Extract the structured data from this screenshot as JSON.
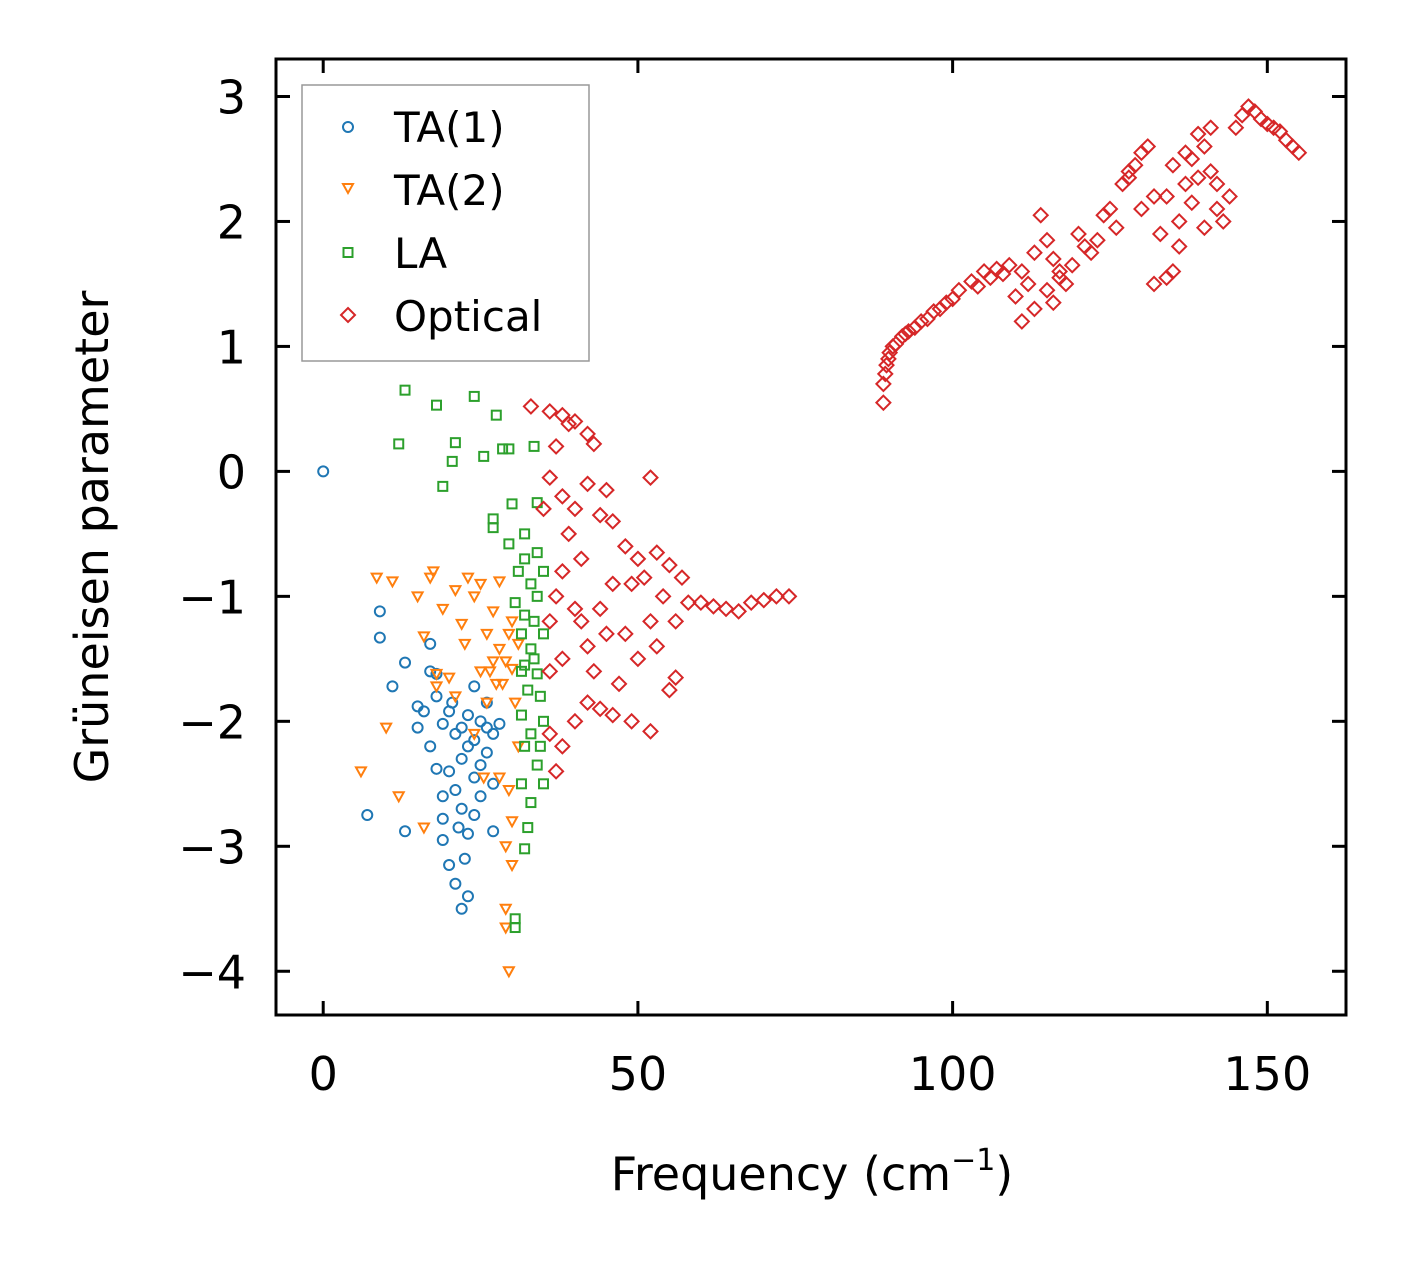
{
  "chart_data": {
    "type": "scatter",
    "title": "",
    "xlabel": "Frequency (cm",
    "xlabel_sup": "−1",
    "xlabel_close": ")",
    "ylabel": "Grüneisen parameter",
    "xlim": [
      -7.5,
      162.5
    ],
    "ylim": [
      -4.35,
      3.3
    ],
    "x_ticks": [
      0,
      50,
      100,
      150
    ],
    "x_tick_labels": [
      "0",
      "50",
      "100",
      "150"
    ],
    "y_ticks": [
      3,
      2,
      1,
      0,
      -1,
      -2,
      -3,
      -4
    ],
    "y_tick_labels": [
      "3",
      "2",
      "1",
      "0",
      "−1",
      "−2",
      "−3",
      "−4"
    ],
    "grid": false,
    "legend_position": "top-left",
    "series": [
      {
        "name": "TA(1)",
        "marker": "circle",
        "color": "#1f77b4",
        "points": [
          [
            0,
            0
          ],
          [
            7,
            -2.75
          ],
          [
            9,
            -1.12
          ],
          [
            9,
            -1.33
          ],
          [
            11,
            -1.72
          ],
          [
            13,
            -1.53
          ],
          [
            13,
            -2.88
          ],
          [
            15,
            -1.88
          ],
          [
            15,
            -2.05
          ],
          [
            16,
            -1.92
          ],
          [
            17,
            -1.38
          ],
          [
            17,
            -1.6
          ],
          [
            17,
            -2.2
          ],
          [
            18,
            -1.62
          ],
          [
            18,
            -1.8
          ],
          [
            18,
            -2.38
          ],
          [
            19,
            -2.02
          ],
          [
            19,
            -2.6
          ],
          [
            19,
            -2.78
          ],
          [
            19,
            -2.95
          ],
          [
            20,
            -1.92
          ],
          [
            20,
            -2.4
          ],
          [
            20,
            -3.15
          ],
          [
            21,
            -2.1
          ],
          [
            21,
            -2.55
          ],
          [
            21,
            -3.3
          ],
          [
            22,
            -3.5
          ],
          [
            22,
            -2.3
          ],
          [
            22,
            -2.7
          ],
          [
            23,
            -2.9
          ],
          [
            23,
            -3.4
          ],
          [
            23,
            -1.95
          ],
          [
            24,
            -2.45
          ],
          [
            24,
            -1.72
          ],
          [
            24,
            -2.15
          ],
          [
            25,
            -2.6
          ],
          [
            25,
            -2.0
          ],
          [
            25,
            -2.35
          ],
          [
            26,
            -1.85
          ],
          [
            26,
            -2.25
          ],
          [
            27,
            -2.5
          ],
          [
            27,
            -2.88
          ],
          [
            27,
            -2.1
          ],
          [
            28,
            -2.02
          ],
          [
            21.5,
            -2.85
          ],
          [
            22.5,
            -3.1
          ],
          [
            22,
            -2.05
          ],
          [
            23,
            -2.2
          ],
          [
            24,
            -2.75
          ],
          [
            26,
            -2.05
          ],
          [
            20.5,
            -1.85
          ]
        ]
      },
      {
        "name": "TA(2)",
        "marker": "triangle-down",
        "color": "#ff7f0e",
        "points": [
          [
            6,
            -2.4
          ],
          [
            8.5,
            -0.85
          ],
          [
            10,
            -2.05
          ],
          [
            11,
            -0.88
          ],
          [
            12,
            -2.6
          ],
          [
            15,
            -1.0
          ],
          [
            16,
            -1.32
          ],
          [
            16,
            -2.85
          ],
          [
            17,
            -0.85
          ],
          [
            17.5,
            -0.8
          ],
          [
            18,
            -1.62
          ],
          [
            18,
            -1.72
          ],
          [
            19,
            -1.1
          ],
          [
            20,
            -1.65
          ],
          [
            21,
            -0.95
          ],
          [
            21,
            -1.8
          ],
          [
            22,
            -1.22
          ],
          [
            22.5,
            -1.38
          ],
          [
            23,
            -0.85
          ],
          [
            24,
            -1.0
          ],
          [
            24,
            -2.1
          ],
          [
            25,
            -0.9
          ],
          [
            25,
            -1.6
          ],
          [
            26,
            -1.3
          ],
          [
            26,
            -1.85
          ],
          [
            27,
            -1.12
          ],
          [
            27,
            -1.52
          ],
          [
            28,
            -0.88
          ],
          [
            28,
            -1.42
          ],
          [
            28,
            -2.45
          ],
          [
            29,
            -1.52
          ],
          [
            29,
            -3.0
          ],
          [
            29,
            -3.5
          ],
          [
            29.5,
            -4.0
          ],
          [
            30,
            -1.2
          ],
          [
            30,
            -1.58
          ],
          [
            30,
            -2.8
          ],
          [
            30,
            -3.15
          ],
          [
            31,
            -1.38
          ],
          [
            31,
            -2.2
          ],
          [
            29,
            -3.65
          ],
          [
            27.5,
            -1.7
          ],
          [
            26.5,
            -1.6
          ],
          [
            29.5,
            -1.3
          ],
          [
            28.5,
            -1.7
          ],
          [
            30.5,
            -1.85
          ],
          [
            29.5,
            -2.55
          ],
          [
            25.5,
            -2.45
          ]
        ]
      },
      {
        "name": "LA",
        "marker": "square",
        "color": "#2ca02c",
        "points": [
          [
            12,
            0.22
          ],
          [
            13,
            0.65
          ],
          [
            18,
            0.53
          ],
          [
            19,
            -0.12
          ],
          [
            20.5,
            0.08
          ],
          [
            21,
            0.23
          ],
          [
            24,
            0.6
          ],
          [
            25.5,
            0.12
          ],
          [
            27,
            -0.45
          ],
          [
            27,
            -0.38
          ],
          [
            27.5,
            0.45
          ],
          [
            28.5,
            0.18
          ],
          [
            29.5,
            -0.58
          ],
          [
            29.5,
            0.18
          ],
          [
            30,
            -0.26
          ],
          [
            30.5,
            -1.05
          ],
          [
            31,
            -0.8
          ],
          [
            31.5,
            -1.3
          ],
          [
            31.5,
            -1.95
          ],
          [
            31.5,
            -2.5
          ],
          [
            32,
            -0.5
          ],
          [
            32,
            -0.7
          ],
          [
            32,
            -1.15
          ],
          [
            32,
            -1.55
          ],
          [
            32,
            -2.2
          ],
          [
            32,
            -3.02
          ],
          [
            32.5,
            -1.75
          ],
          [
            32.5,
            -2.85
          ],
          [
            33,
            -0.9
          ],
          [
            33,
            -1.42
          ],
          [
            33,
            -2.1
          ],
          [
            33,
            -2.65
          ],
          [
            33.5,
            0.2
          ],
          [
            33.5,
            -1.2
          ],
          [
            34,
            -0.25
          ],
          [
            34,
            -0.65
          ],
          [
            34,
            -1.0
          ],
          [
            34,
            -1.62
          ],
          [
            34,
            -2.35
          ],
          [
            34.5,
            -1.8
          ],
          [
            35,
            -0.8
          ],
          [
            35,
            -1.3
          ],
          [
            35,
            -2.0
          ],
          [
            35,
            -2.5
          ],
          [
            30.5,
            -3.58
          ],
          [
            30.5,
            -3.65
          ],
          [
            33.5,
            -1.5
          ],
          [
            34.5,
            -2.2
          ],
          [
            31.5,
            -1.6
          ]
        ]
      },
      {
        "name": "Optical",
        "marker": "diamond",
        "color": "#d62728",
        "points": [
          [
            33,
            0.52
          ],
          [
            36,
            0.48
          ],
          [
            38,
            0.45
          ],
          [
            39,
            0.38
          ],
          [
            40,
            0.4
          ],
          [
            42,
            0.3
          ],
          [
            43,
            0.22
          ],
          [
            37,
            0.2
          ],
          [
            35,
            -0.3
          ],
          [
            36,
            -0.05
          ],
          [
            38,
            -0.2
          ],
          [
            40,
            -0.3
          ],
          [
            42,
            -0.1
          ],
          [
            44,
            -0.35
          ],
          [
            46,
            -0.4
          ],
          [
            48,
            -0.6
          ],
          [
            50,
            -0.7
          ],
          [
            52,
            -0.05
          ],
          [
            53,
            -0.65
          ],
          [
            55,
            -0.75
          ],
          [
            57,
            -0.85
          ],
          [
            56,
            -1.65
          ],
          [
            55,
            -1.75
          ],
          [
            52,
            -2.08
          ],
          [
            49,
            -2.0
          ],
          [
            46,
            -1.95
          ],
          [
            44,
            -1.9
          ],
          [
            42,
            -1.85
          ],
          [
            40,
            -2.0
          ],
          [
            38,
            -2.2
          ],
          [
            37,
            -2.4
          ],
          [
            36,
            -2.1
          ],
          [
            36,
            -1.6
          ],
          [
            36,
            -1.2
          ],
          [
            38,
            -0.8
          ],
          [
            40,
            -1.1
          ],
          [
            42,
            -1.4
          ],
          [
            44,
            -1.1
          ],
          [
            46,
            -0.9
          ],
          [
            48,
            -1.3
          ],
          [
            50,
            -1.5
          ],
          [
            52,
            -1.2
          ],
          [
            54,
            -1.0
          ],
          [
            56,
            -1.2
          ],
          [
            58,
            -1.05
          ],
          [
            60,
            -1.05
          ],
          [
            62,
            -1.08
          ],
          [
            64,
            -1.1
          ],
          [
            66,
            -1.12
          ],
          [
            68,
            -1.05
          ],
          [
            70,
            -1.03
          ],
          [
            72,
            -1.0
          ],
          [
            74,
            -1.0
          ],
          [
            38,
            -1.5
          ],
          [
            39,
            -0.5
          ],
          [
            41,
            -0.7
          ],
          [
            43,
            -1.6
          ],
          [
            45,
            -1.3
          ],
          [
            47,
            -1.7
          ],
          [
            49,
            -0.9
          ],
          [
            51,
            -0.85
          ],
          [
            53,
            -1.4
          ],
          [
            45,
            -0.15
          ],
          [
            41,
            -1.2
          ],
          [
            37,
            -1.0
          ],
          [
            89,
            0.55
          ],
          [
            89,
            0.7
          ],
          [
            89.5,
            0.85
          ],
          [
            90,
            0.95
          ],
          [
            91,
            1.02
          ],
          [
            92,
            1.08
          ],
          [
            93,
            1.12
          ],
          [
            95,
            1.2
          ],
          [
            97,
            1.28
          ],
          [
            99,
            1.35
          ],
          [
            101,
            1.45
          ],
          [
            103,
            1.52
          ],
          [
            105,
            1.6
          ],
          [
            107,
            1.62
          ],
          [
            109,
            1.65
          ],
          [
            111,
            1.6
          ],
          [
            113,
            1.75
          ],
          [
            114,
            2.05
          ],
          [
            115,
            1.85
          ],
          [
            116,
            1.7
          ],
          [
            117,
            1.6
          ],
          [
            118,
            1.5
          ],
          [
            119,
            1.65
          ],
          [
            120,
            1.9
          ],
          [
            121,
            1.8
          ],
          [
            122,
            1.75
          ],
          [
            123,
            1.85
          ],
          [
            124,
            2.05
          ],
          [
            125,
            2.1
          ],
          [
            126,
            1.95
          ],
          [
            127,
            2.3
          ],
          [
            128,
            2.4
          ],
          [
            129,
            2.45
          ],
          [
            130,
            2.55
          ],
          [
            131,
            2.6
          ],
          [
            132,
            2.2
          ],
          [
            133,
            1.9
          ],
          [
            134,
            1.55
          ],
          [
            135,
            1.6
          ],
          [
            136,
            1.8
          ],
          [
            137,
            2.3
          ],
          [
            138,
            2.5
          ],
          [
            139,
            2.7
          ],
          [
            140,
            2.6
          ],
          [
            141,
            2.4
          ],
          [
            142,
            2.1
          ],
          [
            143,
            2.0
          ],
          [
            144,
            2.2
          ],
          [
            145,
            2.75
          ],
          [
            146,
            2.85
          ],
          [
            147,
            2.92
          ],
          [
            148,
            2.88
          ],
          [
            149,
            2.82
          ],
          [
            150,
            2.78
          ],
          [
            151,
            2.75
          ],
          [
            152,
            2.72
          ],
          [
            153,
            2.65
          ],
          [
            154,
            2.6
          ],
          [
            155,
            2.55
          ],
          [
            111,
            1.2
          ],
          [
            113,
            1.3
          ],
          [
            115,
            1.45
          ],
          [
            117,
            1.55
          ],
          [
            132,
            1.5
          ],
          [
            134,
            2.2
          ],
          [
            136,
            2.0
          ],
          [
            138,
            2.15
          ],
          [
            140,
            1.95
          ],
          [
            142,
            2.3
          ],
          [
            130,
            2.1
          ],
          [
            128,
            2.35
          ],
          [
            135,
            2.45
          ],
          [
            137,
            2.55
          ],
          [
            139,
            2.35
          ],
          [
            141,
            2.75
          ],
          [
            110,
            1.4
          ],
          [
            112,
            1.5
          ],
          [
            116,
            1.35
          ],
          [
            106,
            1.55
          ],
          [
            108,
            1.58
          ],
          [
            104,
            1.48
          ],
          [
            100,
            1.38
          ],
          [
            98,
            1.3
          ],
          [
            96,
            1.22
          ],
          [
            94,
            1.15
          ],
          [
            92.5,
            1.1
          ],
          [
            90.5,
            1.0
          ],
          [
            89.3,
            0.78
          ],
          [
            89.8,
            0.9
          ]
        ]
      }
    ]
  }
}
